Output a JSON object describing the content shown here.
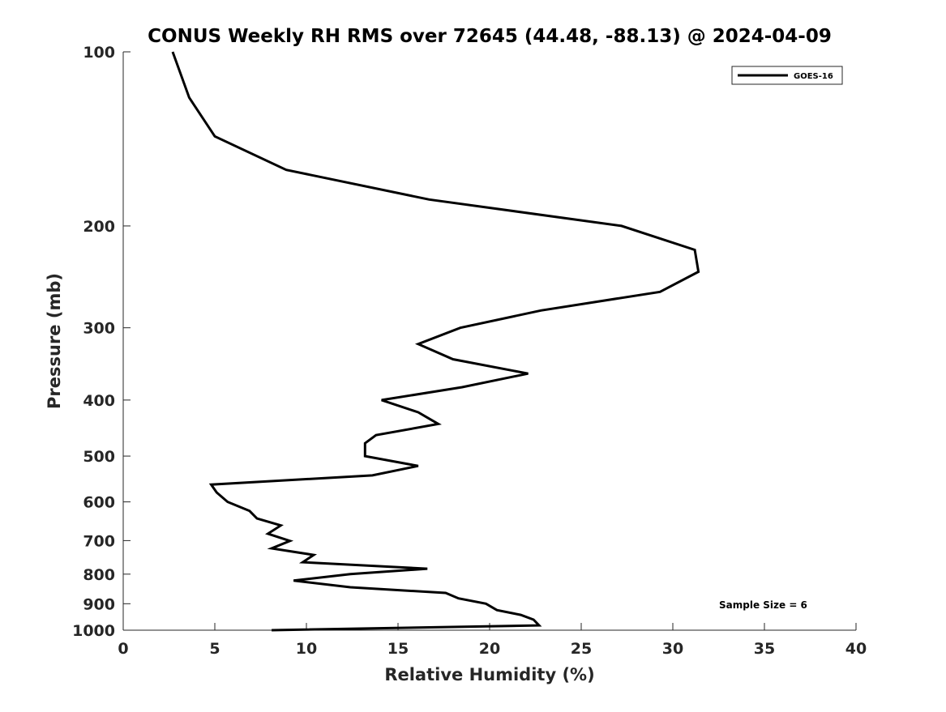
{
  "chart_data": {
    "type": "line",
    "title": "CONUS Weekly RH RMS over 72645 (44.48, -88.13) @ 2024-04-09",
    "xlabel": "Relative Humidity (%)",
    "ylabel": "Pressure (mb)",
    "xlim": [
      0,
      40
    ],
    "ylim": [
      100,
      1000
    ],
    "yscale": "log",
    "y_reversed": true,
    "grid": false,
    "x_ticks": [
      "0",
      "5",
      "10",
      "15",
      "20",
      "25",
      "30",
      "35",
      "40"
    ],
    "y_ticks": [
      "100",
      "200",
      "300",
      "400",
      "500",
      "600",
      "700",
      "800",
      "900",
      "1000"
    ],
    "legend_position": "top-right",
    "annotation": "Sample Size = 6",
    "series": [
      {
        "name": "GOES-16",
        "color": "#000000",
        "x": [
          2.7,
          3.6,
          5.0,
          8.9,
          16.7,
          27.2,
          31.2,
          31.4,
          29.3,
          22.8,
          18.4,
          16.1,
          18.0,
          22.1,
          18.5,
          14.1,
          16.1,
          17.2,
          13.8,
          13.2,
          13.2,
          16.1,
          13.6,
          4.8,
          5.1,
          5.7,
          6.9,
          7.3,
          8.6,
          7.9,
          9.1,
          8.1,
          10.4,
          9.8,
          16.6,
          12.4,
          9.3,
          12.4,
          17.6,
          18.3,
          19.8,
          20.4,
          21.7,
          22.4,
          22.7,
          8.1
        ],
        "y": [
          100,
          120,
          140,
          160,
          180,
          200,
          220,
          240,
          260,
          280,
          300,
          320,
          340,
          360,
          380,
          400,
          420,
          440,
          460,
          475,
          500,
          520,
          540,
          560,
          578,
          600,
          622,
          641,
          659,
          681,
          701,
          722,
          741,
          763,
          783,
          800,
          821,
          843,
          862,
          881,
          900,
          923,
          941,
          959,
          981,
          1000
        ]
      }
    ]
  }
}
